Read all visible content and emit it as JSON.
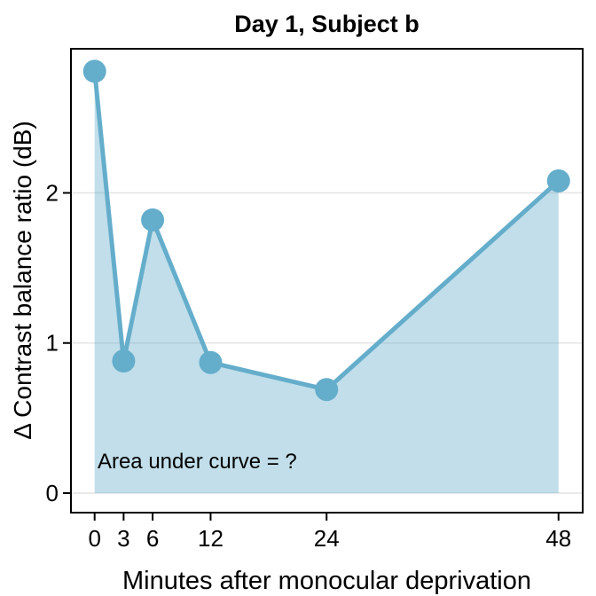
{
  "chart_data": {
    "type": "area",
    "title": "Day 1, Subject b",
    "xlabel": "Minutes after monocular deprivation",
    "ylabel": "Δ Contrast balance ratio (dB)",
    "x": [
      0,
      3,
      6,
      12,
      24,
      48
    ],
    "values": [
      2.81,
      0.88,
      1.82,
      0.87,
      0.69,
      2.08
    ],
    "area_baseline": 0,
    "x_ticks": [
      0,
      3,
      6,
      12,
      24,
      48
    ],
    "y_ticks": [
      0,
      1,
      2
    ],
    "xlim": [
      -2.45,
      50.5
    ],
    "ylim": [
      -0.13,
      2.96
    ],
    "grid": {
      "horizontal": true,
      "vertical": false
    },
    "legend": false,
    "annotation": {
      "text": "Area under curve = ?",
      "x": 0.3,
      "y": 0.165
    },
    "colors": {
      "line": "#64ADCB",
      "area_opacity": 0.4,
      "grid": "#E4E4E4",
      "border": "#000000",
      "text": "#000000",
      "background": "#FFFFFF"
    }
  }
}
